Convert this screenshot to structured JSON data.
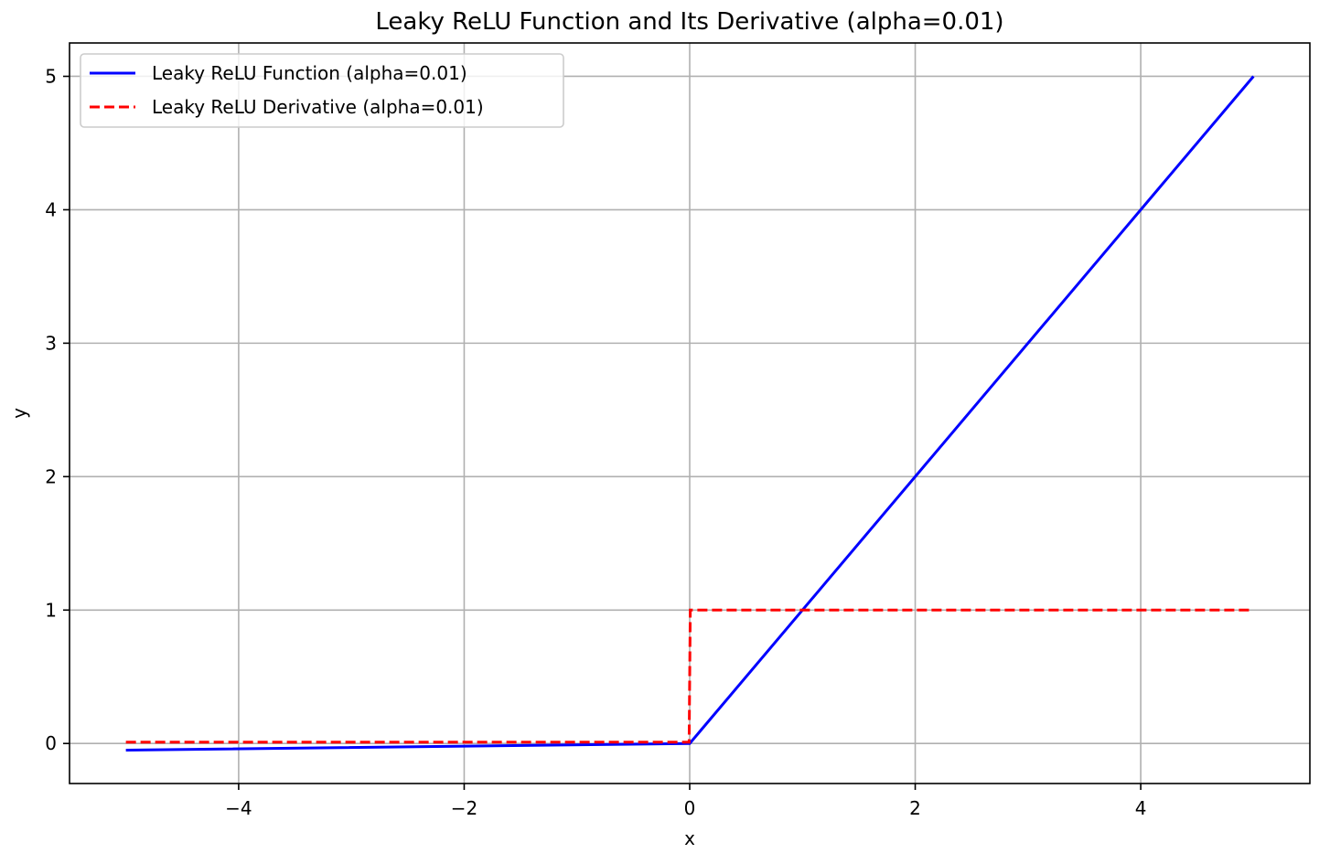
{
  "chart_data": {
    "type": "line",
    "title": "Leaky ReLU Function and Its Derivative (alpha=0.01)",
    "xlabel": "x",
    "ylabel": "y",
    "xlim": [
      -5.5,
      5.5
    ],
    "ylim": [
      -0.3,
      5.25
    ],
    "xticks": [
      -4,
      -2,
      0,
      2,
      4
    ],
    "xtick_labels": [
      "−4",
      "−2",
      "0",
      "2",
      "4"
    ],
    "yticks": [
      0,
      1,
      2,
      3,
      4,
      5
    ],
    "ytick_labels": [
      "0",
      "1",
      "2",
      "3",
      "4",
      "5"
    ],
    "grid": true,
    "legend_position": "top-left",
    "series": [
      {
        "name": "Leaky ReLU Function (alpha=0.01)",
        "color": "#0000ff",
        "style": "solid",
        "x": [
          -5,
          0,
          5
        ],
        "y": [
          -0.05,
          0,
          5
        ]
      },
      {
        "name": "Leaky ReLU Derivative (alpha=0.01)",
        "color": "#ff0000",
        "style": "dashed",
        "x": [
          -5,
          -0.005,
          0.005,
          5
        ],
        "y": [
          0.01,
          0.01,
          1,
          1
        ]
      }
    ]
  }
}
